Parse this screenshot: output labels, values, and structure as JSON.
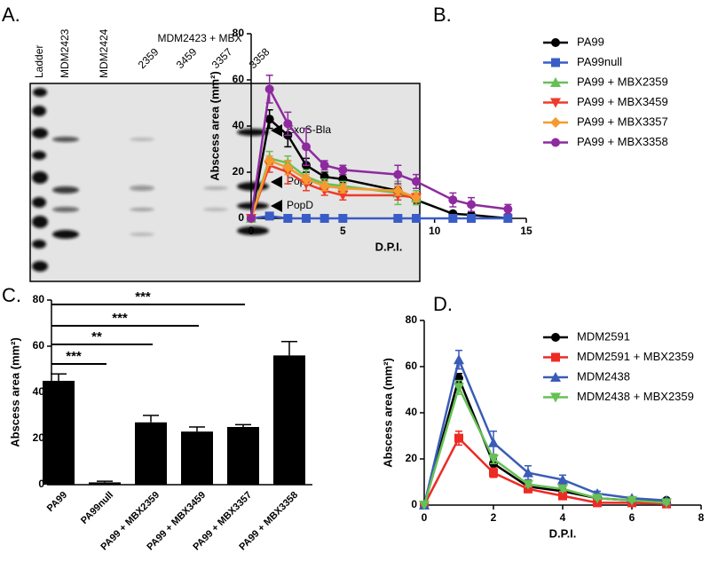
{
  "gel": {
    "label": "A.",
    "lanes": [
      "Ladder",
      "MDM2423",
      "MDM2424",
      "2359",
      "3459",
      "3357",
      "3358"
    ],
    "group_label": "MDM2423 + MBX",
    "bands": [
      "ExoS-Bla",
      "PopB",
      "PopD"
    ]
  },
  "chart_data": [
    {
      "type": "line",
      "label": "B.",
      "ylabel": "Abscess area (mm²)",
      "xlabel": "D.P.I.",
      "xlim": [
        0,
        15
      ],
      "xticks": [
        0,
        5,
        10,
        15
      ],
      "ylim": [
        0,
        80
      ],
      "yticks": [
        0,
        20,
        40,
        60,
        80
      ],
      "x": [
        0,
        1,
        2,
        3,
        4,
        5,
        8,
        9,
        11,
        12,
        14
      ],
      "series": [
        {
          "name": "PA99",
          "color": "#000000",
          "marker": "circle",
          "values": [
            0,
            43,
            36,
            23,
            18,
            17,
            12,
            8,
            2,
            1.5,
            0
          ],
          "errors": [
            0,
            4,
            5,
            3,
            2,
            2,
            2,
            2,
            1,
            1,
            0
          ]
        },
        {
          "name": "PA99null",
          "color": "#3a5cc6",
          "marker": "square",
          "values": [
            0,
            1,
            0,
            0,
            0,
            0,
            0,
            0,
            0,
            0,
            0
          ],
          "errors": [
            0,
            0.5,
            0,
            0,
            0,
            0,
            0,
            0,
            0,
            0,
            0
          ]
        },
        {
          "name": "PA99 + MBX2359",
          "color": "#66c055",
          "marker": "triangle-up",
          "values": [
            0,
            26,
            24,
            18,
            15,
            14,
            11,
            9,
            null,
            null,
            null
          ],
          "errors": [
            0,
            3,
            3,
            3,
            2,
            2,
            5,
            3,
            null,
            null,
            null
          ]
        },
        {
          "name": "PA99 + MBX3459",
          "color": "#ee3b2a",
          "marker": "triangle-down",
          "values": [
            0,
            23,
            20,
            15,
            12,
            10,
            10,
            9,
            null,
            null,
            null
          ],
          "errors": [
            0,
            3,
            5,
            3,
            2,
            2,
            2,
            2,
            null,
            null,
            null
          ]
        },
        {
          "name": "PA99 + MBX3357",
          "color": "#f59a2e",
          "marker": "diamond",
          "values": [
            0,
            25,
            22,
            17,
            14,
            13,
            12,
            9,
            null,
            null,
            null
          ],
          "errors": [
            0,
            2,
            3,
            2,
            2,
            2,
            2,
            2,
            null,
            null,
            null
          ]
        },
        {
          "name": "PA99 + MBX3358",
          "color": "#8e2a9f",
          "marker": "circle",
          "values": [
            0,
            56,
            41,
            31,
            23,
            21,
            19,
            16,
            8,
            6,
            4
          ],
          "errors": [
            0,
            6,
            5,
            8,
            2,
            2,
            4,
            3,
            3,
            3,
            2
          ]
        }
      ]
    },
    {
      "type": "bar",
      "label": "C.",
      "ylabel": "Abscess area (mm²)",
      "color": "#000000",
      "ylim": [
        0,
        80
      ],
      "yticks": [
        0,
        20,
        40,
        60,
        80
      ],
      "categories": [
        "PA99",
        "PA99null",
        "PA99 + MBX2359",
        "PA99 + MBX3459",
        "PA99 + MBX3357",
        "PA99 + MBX3358"
      ],
      "values": [
        45,
        1,
        27,
        23,
        25,
        56
      ],
      "errors": [
        3,
        0.5,
        3,
        2,
        1,
        6
      ],
      "comparisons": [
        {
          "from": "PA99",
          "to": "PA99null",
          "label": "***"
        },
        {
          "from": "PA99",
          "to": "PA99 + MBX2359",
          "label": "**"
        },
        {
          "from": "PA99",
          "to": "PA99 + MBX3459",
          "label": "***"
        },
        {
          "from": "PA99",
          "to": "PA99 + MBX3357",
          "label": "***"
        }
      ]
    },
    {
      "type": "line",
      "label": "D.",
      "ylabel": "Abscess area (mm²)",
      "xlabel": "D.P.I.",
      "xlim": [
        0,
        8
      ],
      "xticks": [
        0,
        2,
        4,
        6,
        8
      ],
      "ylim": [
        0,
        80
      ],
      "yticks": [
        0,
        20,
        40,
        60,
        80
      ],
      "x": [
        0,
        1,
        2,
        3,
        4,
        5,
        6,
        7
      ],
      "series": [
        {
          "name": "MDM2591",
          "color": "#000000",
          "marker": "circle",
          "values": [
            0,
            55,
            18,
            8,
            6,
            3,
            2,
            2
          ],
          "errors": [
            0,
            2,
            2,
            1,
            1,
            0.5,
            0.5,
            0.5
          ]
        },
        {
          "name": "MDM2591 + MBX2359",
          "color": "#ee2a24",
          "marker": "square",
          "values": [
            0,
            29,
            14,
            7,
            4,
            1,
            1,
            0.5
          ],
          "errors": [
            0,
            3,
            2,
            1,
            1,
            0.5,
            0.5,
            0.5
          ]
        },
        {
          "name": "MDM2438",
          "color": "#3a5cb6",
          "marker": "triangle-up",
          "values": [
            0,
            63,
            27,
            14,
            11,
            5,
            3,
            2
          ],
          "errors": [
            0,
            4,
            5,
            3,
            2,
            1,
            0.5,
            0.5
          ]
        },
        {
          "name": "MDM2438 + MBX2359",
          "color": "#66c055",
          "marker": "triangle-down",
          "values": [
            0,
            51,
            20,
            9,
            7,
            3,
            2,
            1
          ],
          "errors": [
            0,
            3,
            2,
            1,
            1,
            0.5,
            0.5,
            0.5
          ]
        }
      ]
    }
  ]
}
